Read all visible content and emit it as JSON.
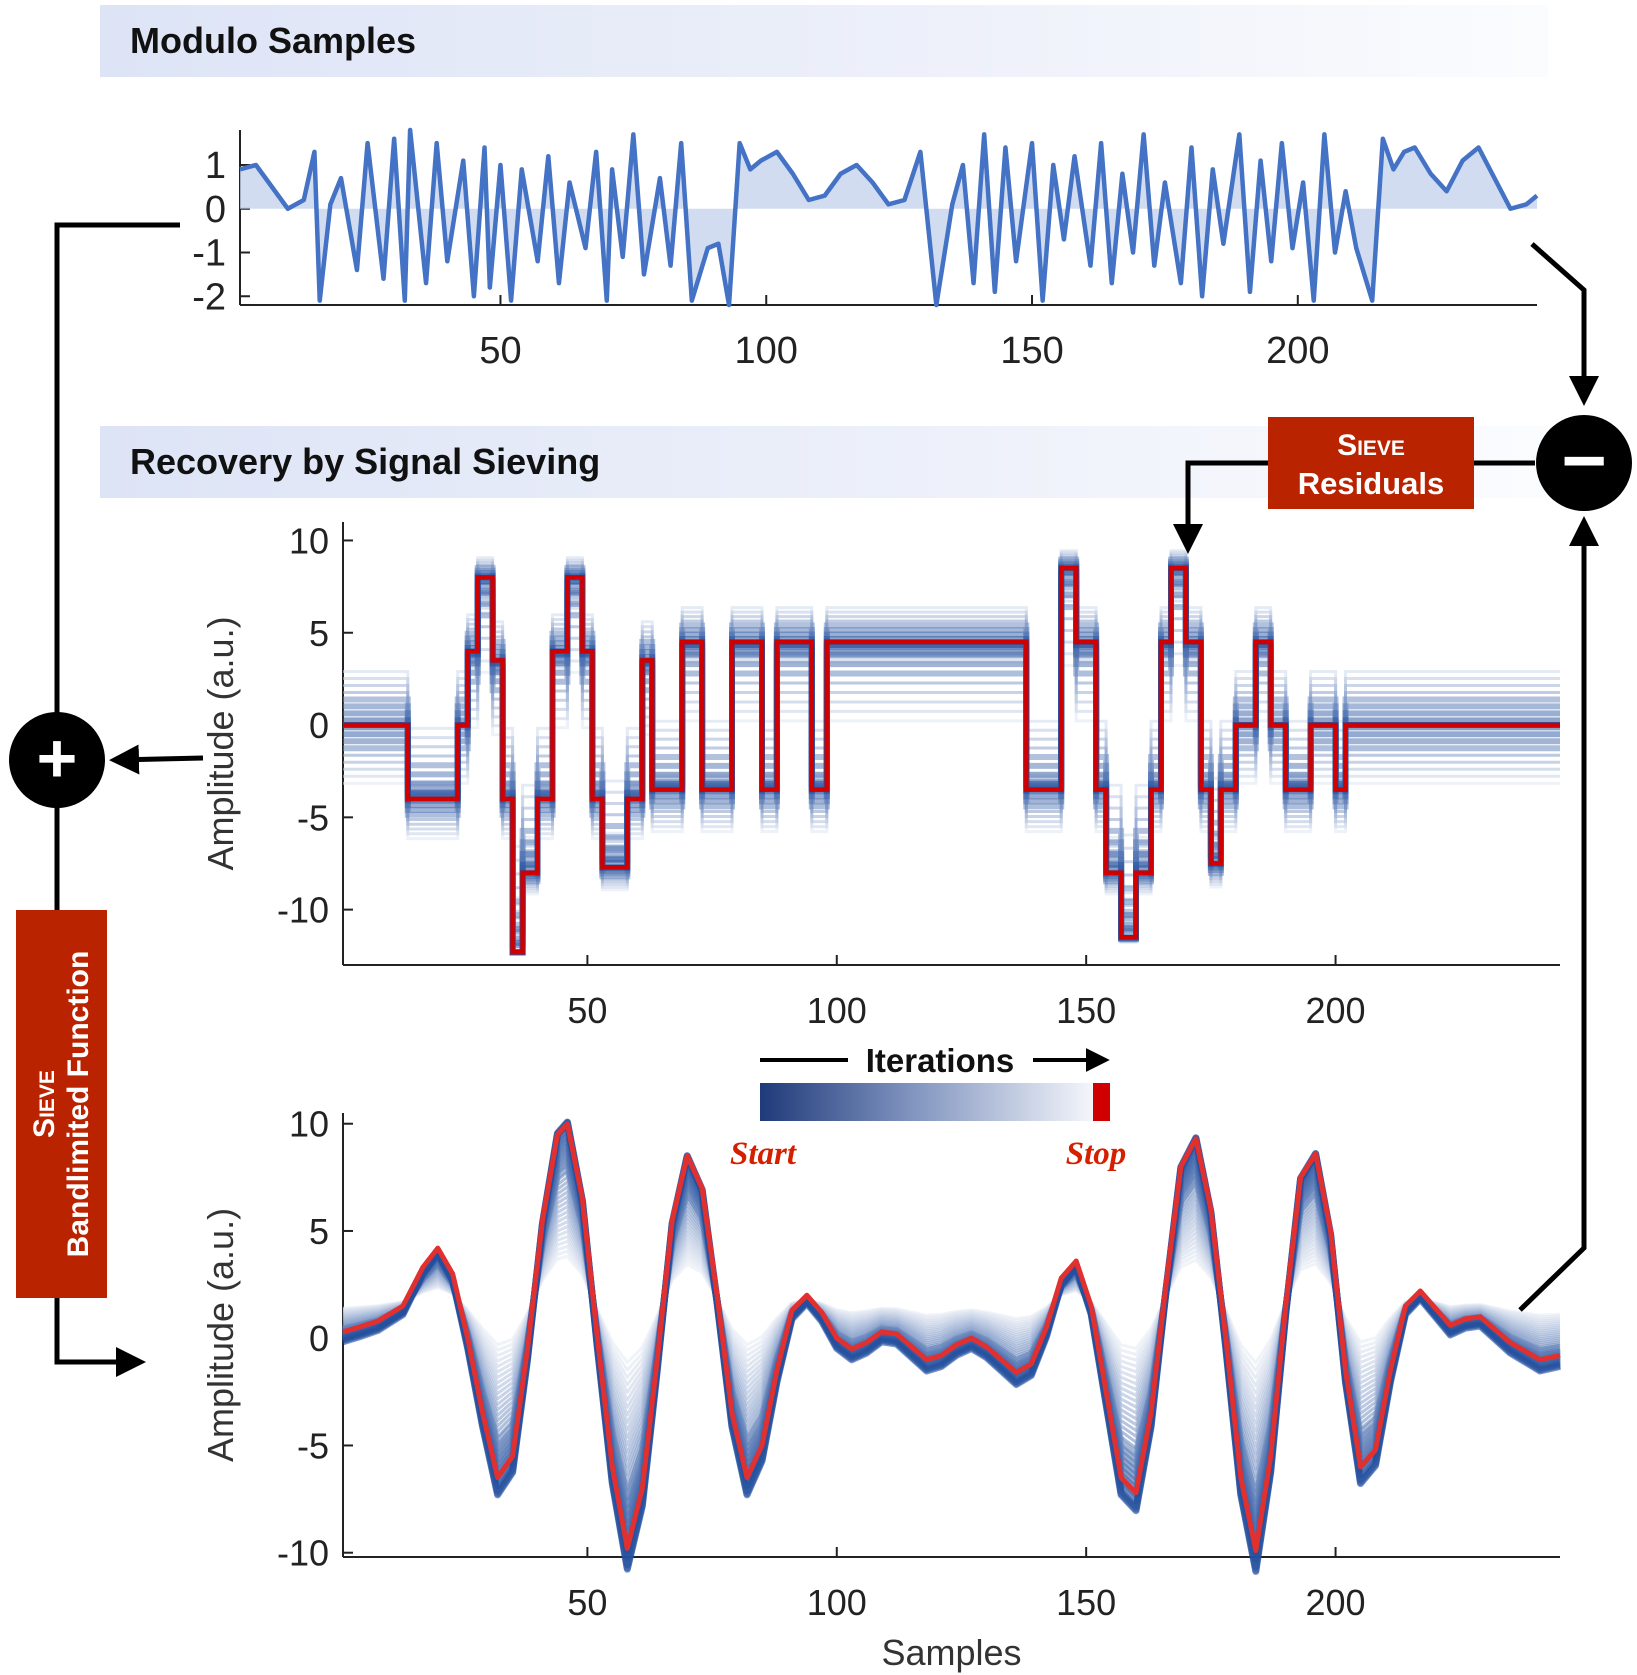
{
  "banners": {
    "top": "Modulo Samples",
    "middle": "Recovery by Signal Sieving"
  },
  "labels": {
    "sieve_residuals_line1": "Sieve",
    "sieve_residuals_line2": "Residuals",
    "sieve_bandlimited_line1": "Sieve",
    "sieve_bandlimited_line2": "Bandlimited Function",
    "iterations": "Iterations",
    "start": "Start",
    "stop": "Stop",
    "plus_symbol": "+",
    "minus_symbol": "−"
  },
  "colors": {
    "line_blue": "#4472c4",
    "dark_blue": "#1f3a7a",
    "light_blue": "#e8edf6",
    "red": "#d00000",
    "box_red": "#b92300"
  },
  "chart_data": [
    {
      "id": "modulo",
      "type": "line",
      "title": "Modulo Samples",
      "xlabel": "",
      "ylabel": "",
      "xlim": [
        1,
        245
      ],
      "ylim": [
        -2.2,
        1.8
      ],
      "xticks": [
        50,
        100,
        150,
        200
      ],
      "yticks": [
        1,
        0,
        -1,
        -2
      ],
      "ytick_labels": [
        "1",
        "0",
        "-1",
        "-2"
      ],
      "x": [
        1,
        4,
        7,
        10,
        13,
        15,
        16,
        18,
        20,
        23,
        25,
        28,
        30,
        32,
        33,
        36,
        38,
        40,
        43,
        45,
        47,
        48,
        50,
        52,
        54,
        57,
        59,
        61,
        63,
        66,
        68,
        70,
        71,
        73,
        75,
        77,
        80,
        82,
        84,
        86,
        89,
        91,
        93,
        95,
        97,
        99,
        102,
        105,
        108,
        111,
        114,
        117,
        120,
        123,
        126,
        129,
        132,
        135,
        137,
        139,
        141,
        143,
        145,
        147,
        150,
        152,
        154,
        156,
        158,
        161,
        163,
        165,
        167,
        169,
        171,
        173,
        175,
        178,
        180,
        182,
        184,
        186,
        189,
        191,
        193,
        195,
        197,
        199,
        201,
        203,
        205,
        207,
        209,
        211,
        214,
        216,
        218,
        220,
        222,
        225,
        228,
        231,
        234,
        237,
        240,
        243,
        245
      ],
      "values": [
        0.9,
        1.0,
        0.5,
        0.0,
        0.2,
        1.3,
        -2.1,
        0.1,
        0.7,
        -1.4,
        1.5,
        -1.6,
        1.6,
        -2.1,
        1.8,
        -1.7,
        1.5,
        -1.2,
        1.1,
        -2.0,
        1.4,
        -1.8,
        1.0,
        -2.1,
        0.9,
        -1.2,
        1.2,
        -1.7,
        0.6,
        -0.9,
        1.3,
        -2.1,
        0.9,
        -1.1,
        1.7,
        -1.5,
        0.7,
        -1.3,
        1.5,
        -2.1,
        -0.9,
        -0.8,
        -2.2,
        1.5,
        0.9,
        1.1,
        1.3,
        0.8,
        0.2,
        0.3,
        0.8,
        1.0,
        0.6,
        0.1,
        0.2,
        1.3,
        -2.2,
        0.1,
        1.0,
        -1.7,
        1.7,
        -1.9,
        1.4,
        -1.2,
        1.5,
        -2.1,
        1.0,
        -0.7,
        1.2,
        -1.3,
        1.5,
        -1.7,
        0.8,
        -1.0,
        1.7,
        -1.3,
        0.6,
        -1.7,
        1.4,
        -2.0,
        0.9,
        -0.8,
        1.7,
        -1.9,
        1.1,
        -1.2,
        1.5,
        -0.9,
        0.6,
        -2.1,
        1.7,
        -1.0,
        0.4,
        -0.9,
        -2.1,
        1.6,
        0.9,
        1.3,
        1.4,
        0.8,
        0.4,
        1.1,
        1.4,
        0.7,
        0.0,
        0.1,
        0.3
      ]
    },
    {
      "id": "residuals",
      "type": "line",
      "title": "",
      "xlabel": "",
      "ylabel": "Amplitude (a.u.)",
      "xlim": [
        1,
        245
      ],
      "ylim": [
        -13,
        11
      ],
      "xticks": [
        50,
        100,
        150,
        200
      ],
      "yticks": [
        10,
        5,
        0,
        -5,
        -10
      ],
      "ytick_labels": [
        "10",
        "5",
        "0",
        "-5",
        "-10"
      ],
      "series": [
        {
          "name": "final (stop)",
          "color": "#d00000",
          "x": [
            1,
            12,
            14,
            14,
            24,
            24,
            26,
            26,
            28,
            28,
            31,
            31,
            33,
            33,
            35,
            35,
            37,
            37,
            40,
            40,
            43,
            43,
            46,
            46,
            49,
            49,
            51,
            51,
            53,
            53,
            58,
            58,
            61,
            61,
            63,
            63,
            66,
            66,
            69,
            69,
            73,
            73,
            76,
            76,
            79,
            79,
            85,
            85,
            88,
            88,
            95,
            95,
            98,
            98,
            138,
            138,
            145,
            145,
            148,
            148,
            152,
            152,
            154,
            154,
            157,
            157,
            160,
            160,
            163,
            163,
            165,
            165,
            167,
            167,
            170,
            170,
            173,
            173,
            175,
            175,
            177,
            177,
            180,
            180,
            184,
            184,
            187,
            187,
            190,
            190,
            195,
            195,
            200,
            200,
            202,
            202,
            208,
            208,
            212,
            212,
            216,
            216,
            220,
            220,
            245
          ],
          "values": [
            0,
            0,
            0,
            -4,
            -4,
            0,
            0,
            4,
            4,
            8,
            8,
            3.5,
            3.5,
            -4,
            -4,
            -12.3,
            -12.3,
            -8,
            -8,
            -4,
            -4,
            4,
            4,
            8,
            8,
            4,
            4,
            -4,
            -4,
            -7.7,
            -7.7,
            -4,
            -4,
            3.5,
            3.5,
            -3.5,
            -3.5,
            -3.5,
            -3.5,
            4.5,
            4.5,
            -3.5,
            -3.5,
            -3.5,
            -3.5,
            4.5,
            4.5,
            -3.5,
            -3.5,
            4.5,
            4.5,
            -3.5,
            -3.5,
            4.5,
            4.5,
            -3.5,
            -3.5,
            8.5,
            8.5,
            4.5,
            4.5,
            -3.5,
            -3.5,
            -8,
            -8,
            -11.5,
            -11.5,
            -8,
            -8,
            -3.5,
            -3.5,
            4.5,
            4.5,
            8.5,
            8.5,
            4.5,
            4.5,
            -3.5,
            -3.5,
            -7.5,
            -7.5,
            -3.5,
            -3.5,
            0,
            0,
            4.5,
            4.5,
            0,
            0,
            -3.5,
            -3.5,
            0,
            0,
            -3.5,
            -3.5,
            0,
            0,
            0,
            0,
            0,
            0,
            0,
            0,
            0,
            0
          ]
        }
      ]
    },
    {
      "id": "bandlimited",
      "type": "line",
      "title": "",
      "xlabel": "Samples",
      "ylabel": "Amplitude (a.u.)",
      "xlim": [
        1,
        245
      ],
      "ylim": [
        -10.2,
        10.5
      ],
      "xticks": [
        50,
        100,
        150,
        200
      ],
      "yticks": [
        10,
        5,
        0,
        -5,
        -10
      ],
      "ytick_labels": [
        "10",
        "5",
        "0",
        "-5",
        "-10"
      ],
      "series": [
        {
          "name": "final (stop)",
          "color": "#e03030",
          "x": [
            1,
            4,
            8,
            13,
            17,
            20,
            23,
            26,
            29,
            32,
            35,
            38,
            41,
            44,
            46,
            49,
            52,
            55,
            58,
            61,
            64,
            67,
            70,
            73,
            76,
            79,
            82,
            85,
            88,
            91,
            94,
            97,
            100,
            103,
            106,
            109,
            112,
            115,
            118,
            121,
            124,
            127,
            130,
            133,
            136,
            139,
            142,
            145,
            148,
            151,
            154,
            157,
            160,
            163,
            166,
            169,
            172,
            175,
            178,
            181,
            184,
            187,
            190,
            193,
            196,
            199,
            202,
            205,
            208,
            211,
            214,
            217,
            220,
            223,
            226,
            229,
            232,
            235,
            238,
            241,
            245
          ],
          "values": [
            0.3,
            0.5,
            0.8,
            1.5,
            3.3,
            4.2,
            3.0,
            0.0,
            -3.5,
            -6.5,
            -5.5,
            -0.5,
            5.5,
            9.5,
            10.0,
            6.5,
            0.0,
            -6.0,
            -9.8,
            -7.0,
            -1.0,
            5.5,
            8.5,
            7.0,
            2.0,
            -3.5,
            -6.5,
            -5.0,
            -1.5,
            1.3,
            2.0,
            1.2,
            0.0,
            -0.5,
            -0.2,
            0.3,
            0.2,
            -0.4,
            -1.0,
            -0.8,
            -0.3,
            0.0,
            -0.4,
            -1.0,
            -1.6,
            -1.2,
            0.5,
            2.8,
            3.6,
            1.5,
            -2.5,
            -6.5,
            -7.2,
            -3.5,
            2.5,
            8.0,
            9.3,
            6.0,
            0.0,
            -6.5,
            -9.9,
            -5.5,
            1.5,
            7.5,
            8.6,
            5.0,
            -1.5,
            -6.0,
            -5.2,
            -1.5,
            1.5,
            2.2,
            1.4,
            0.6,
            0.9,
            1.0,
            0.4,
            -0.2,
            -0.6,
            -1.0,
            -0.8
          ]
        }
      ]
    }
  ]
}
